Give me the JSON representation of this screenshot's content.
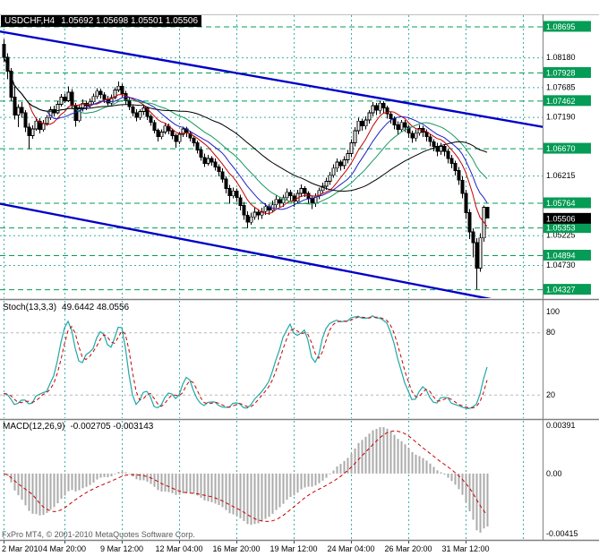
{
  "window": {
    "symbol": "USDCHF,H4",
    "ohlc_line": "1.05692 1.05698 1.05501 1.05506"
  },
  "indicator_headers": {
    "stoch_label": "Stoch(13,3,3)",
    "stoch_values": "49.6442 48.0556",
    "macd_label": "MACD(12,26,9)",
    "macd_values": "-0.002705 -0.003143"
  },
  "footer": {
    "copyright": "FxPro MT4, © 2001-2010 MetaQuotes Software Corp."
  },
  "colors": {
    "grid": "#3fafa9",
    "level": "#059c55",
    "trend": "#0000c8",
    "candle_outline": "#000000",
    "bull_fill": "#ffffff",
    "bear_fill": "#000000",
    "stoch_k": "#1fa8a8",
    "signal_red": "#c80000",
    "macd_hist": "#ababab",
    "current_badge_bg": "#000000",
    "badge_text": "#ffffff",
    "axis_text": "#000000",
    "separator": "#808080",
    "stoch_level_line": "#b8b8b8"
  },
  "chart_data": {
    "type": "candlestick",
    "symbol": "USDCHF",
    "timeframe": "H4",
    "price_pane": {
      "price_range": [
        1.0418,
        1.0888
      ],
      "y_ticks": [
        {
          "price": 1.0818,
          "label": "1.08180"
        },
        {
          "price": 1.07685,
          "label": "1.07685"
        },
        {
          "price": 1.0719,
          "label": "1.07190"
        },
        {
          "price": 1.06215,
          "label": "1.06215"
        },
        {
          "price": 1.05225,
          "label": "1.05225"
        },
        {
          "price": 1.0473,
          "label": "1.04730"
        }
      ],
      "levels": [
        {
          "price": 1.08695,
          "label": "1.08695"
        },
        {
          "price": 1.07928,
          "label": "1.07928"
        },
        {
          "price": 1.07462,
          "label": "1.07462"
        },
        {
          "price": 1.0667,
          "label": "1.06670"
        },
        {
          "price": 1.05764,
          "label": "1.05764"
        },
        {
          "price": 1.05353,
          "label": "1.05353"
        },
        {
          "price": 1.04894,
          "label": "1.04894"
        },
        {
          "price": 1.04327,
          "label": "1.04327"
        }
      ],
      "current_price": {
        "price": 1.05506,
        "label": "1.05506"
      },
      "moving_averages": [
        {
          "period": 8,
          "color": "#c80000"
        },
        {
          "period": 13,
          "color": "#2020c8"
        },
        {
          "period": 21,
          "color": "#17985f"
        },
        {
          "period": 40,
          "color": "#000000"
        }
      ],
      "trendlines": [
        {
          "bar1": -2,
          "price1": 1.0862,
          "bar2": 152,
          "price2": 1.0701
        },
        {
          "bar1": -2,
          "price1": 1.0576,
          "bar2": 152,
          "price2": 1.0398
        }
      ],
      "candles": [
        [
          1.084,
          1.0848,
          1.081,
          1.0818
        ],
        [
          1.0818,
          1.0825,
          1.0782,
          1.0795
        ],
        [
          1.0795,
          1.08,
          1.0745,
          1.0752
        ],
        [
          1.0752,
          1.077,
          1.0715,
          1.0722
        ],
        [
          1.0722,
          1.074,
          1.0702,
          1.0735
        ],
        [
          1.0735,
          1.0744,
          1.0718,
          1.0726
        ],
        [
          1.0726,
          1.073,
          1.0694,
          1.0702
        ],
        [
          1.0702,
          1.0709,
          1.0666,
          1.0688
        ],
        [
          1.0688,
          1.0705,
          1.0683,
          1.0699
        ],
        [
          1.0699,
          1.0718,
          1.0696,
          1.0712
        ],
        [
          1.0712,
          1.0717,
          1.0692,
          1.0698
        ],
        [
          1.0698,
          1.0714,
          1.0695,
          1.0708
        ],
        [
          1.0708,
          1.0722,
          1.0704,
          1.0718
        ],
        [
          1.0718,
          1.0736,
          1.0714,
          1.0731
        ],
        [
          1.0731,
          1.0738,
          1.072,
          1.0726
        ],
        [
          1.0726,
          1.0745,
          1.0724,
          1.074
        ],
        [
          1.074,
          1.0757,
          1.0736,
          1.0752
        ],
        [
          1.0752,
          1.0758,
          1.0742,
          1.0746
        ],
        [
          1.0746,
          1.077,
          1.0744,
          1.076
        ],
        [
          1.076,
          1.0765,
          1.0732,
          1.0738
        ],
        [
          1.0738,
          1.0742,
          1.0703,
          1.0713
        ],
        [
          1.0713,
          1.074,
          1.071,
          1.0734
        ],
        [
          1.0734,
          1.0748,
          1.0728,
          1.0742
        ],
        [
          1.0742,
          1.0746,
          1.073,
          1.0738
        ],
        [
          1.0738,
          1.075,
          1.0734,
          1.0744
        ],
        [
          1.0744,
          1.0758,
          1.074,
          1.0753
        ],
        [
          1.0753,
          1.0767,
          1.0749,
          1.0762
        ],
        [
          1.0762,
          1.0766,
          1.075,
          1.0756
        ],
        [
          1.0756,
          1.076,
          1.0742,
          1.0748
        ],
        [
          1.0748,
          1.0754,
          1.0736,
          1.0742
        ],
        [
          1.0742,
          1.0756,
          1.0738,
          1.0751
        ],
        [
          1.0751,
          1.0768,
          1.0748,
          1.0764
        ],
        [
          1.0764,
          1.0778,
          1.076,
          1.077
        ],
        [
          1.077,
          1.0774,
          1.0752,
          1.0758
        ],
        [
          1.0758,
          1.0762,
          1.074,
          1.0746
        ],
        [
          1.0746,
          1.0752,
          1.073,
          1.0736
        ],
        [
          1.0736,
          1.074,
          1.072,
          1.0726
        ],
        [
          1.0726,
          1.0732,
          1.0712,
          1.0718
        ],
        [
          1.0718,
          1.0732,
          1.0714,
          1.0728
        ],
        [
          1.0728,
          1.0738,
          1.0722,
          1.0734
        ],
        [
          1.0734,
          1.0736,
          1.0714,
          1.072
        ],
        [
          1.072,
          1.0724,
          1.0704,
          1.071
        ],
        [
          1.071,
          1.0714,
          1.0692,
          1.0697
        ],
        [
          1.0697,
          1.07,
          1.0678,
          1.0686
        ],
        [
          1.0686,
          1.0698,
          1.0682,
          1.0694
        ],
        [
          1.0694,
          1.0708,
          1.069,
          1.0704
        ],
        [
          1.0704,
          1.0708,
          1.069,
          1.0696
        ],
        [
          1.0696,
          1.07,
          1.0682,
          1.0688
        ],
        [
          1.0688,
          1.0692,
          1.0668,
          1.0678
        ],
        [
          1.0678,
          1.0694,
          1.0674,
          1.069
        ],
        [
          1.069,
          1.0703,
          1.0686,
          1.0699
        ],
        [
          1.0699,
          1.0703,
          1.0686,
          1.0692
        ],
        [
          1.0692,
          1.0696,
          1.0678,
          1.0684
        ],
        [
          1.0684,
          1.0688,
          1.067,
          1.0676
        ],
        [
          1.0676,
          1.068,
          1.0658,
          1.0664
        ],
        [
          1.0664,
          1.067,
          1.0646,
          1.0652
        ],
        [
          1.0652,
          1.0658,
          1.0636,
          1.0642
        ],
        [
          1.0642,
          1.0656,
          1.0638,
          1.065
        ],
        [
          1.065,
          1.0654,
          1.0638,
          1.0644
        ],
        [
          1.0644,
          1.065,
          1.063,
          1.0636
        ],
        [
          1.0636,
          1.064,
          1.062,
          1.0628
        ],
        [
          1.0628,
          1.0634,
          1.061,
          1.0616
        ],
        [
          1.0616,
          1.062,
          1.0592,
          1.06
        ],
        [
          1.06,
          1.0606,
          1.0575,
          1.0588
        ],
        [
          1.0588,
          1.0602,
          1.0584,
          1.0596
        ],
        [
          1.0596,
          1.06,
          1.0578,
          1.0585
        ],
        [
          1.0585,
          1.059,
          1.0564,
          1.0572
        ],
        [
          1.0572,
          1.0578,
          1.0548,
          1.0556
        ],
        [
          1.0556,
          1.0562,
          1.0534,
          1.0544
        ],
        [
          1.0544,
          1.056,
          1.054,
          1.0553
        ],
        [
          1.0553,
          1.0568,
          1.0548,
          1.0561
        ],
        [
          1.0561,
          1.0566,
          1.0548,
          1.0556
        ],
        [
          1.0556,
          1.0568,
          1.055,
          1.0562
        ],
        [
          1.0562,
          1.0576,
          1.0556,
          1.057
        ],
        [
          1.057,
          1.0574,
          1.0556,
          1.0564
        ],
        [
          1.0564,
          1.058,
          1.056,
          1.0573
        ],
        [
          1.0573,
          1.0588,
          1.0568,
          1.0582
        ],
        [
          1.0582,
          1.0586,
          1.0568,
          1.0576
        ],
        [
          1.0576,
          1.059,
          1.057,
          1.0585
        ],
        [
          1.0585,
          1.06,
          1.058,
          1.0594
        ],
        [
          1.0594,
          1.0598,
          1.058,
          1.0588
        ],
        [
          1.0588,
          1.0592,
          1.057,
          1.0579
        ],
        [
          1.0579,
          1.0598,
          1.0574,
          1.0592
        ],
        [
          1.0592,
          1.0607,
          1.0586,
          1.06
        ],
        [
          1.06,
          1.0604,
          1.0586,
          1.0592
        ],
        [
          1.0592,
          1.0596,
          1.0576,
          1.0584
        ],
        [
          1.0584,
          1.0588,
          1.0566,
          1.0576
        ],
        [
          1.0576,
          1.0592,
          1.057,
          1.0588
        ],
        [
          1.0588,
          1.0602,
          1.0582,
          1.0597
        ],
        [
          1.0597,
          1.061,
          1.0592,
          1.0604
        ],
        [
          1.0604,
          1.0618,
          1.0598,
          1.0612
        ],
        [
          1.0612,
          1.0628,
          1.0606,
          1.0622
        ],
        [
          1.0622,
          1.064,
          1.0618,
          1.0634
        ],
        [
          1.0634,
          1.065,
          1.0628,
          1.0644
        ],
        [
          1.0644,
          1.0648,
          1.063,
          1.0638
        ],
        [
          1.0638,
          1.0654,
          1.0632,
          1.0648
        ],
        [
          1.0648,
          1.0664,
          1.0642,
          1.0658
        ],
        [
          1.0658,
          1.0682,
          1.0652,
          1.0676
        ],
        [
          1.0676,
          1.0702,
          1.067,
          1.0696
        ],
        [
          1.0696,
          1.0718,
          1.069,
          1.0712
        ],
        [
          1.0712,
          1.0716,
          1.0696,
          1.0704
        ],
        [
          1.0704,
          1.072,
          1.0698,
          1.0714
        ],
        [
          1.0714,
          1.073,
          1.0708,
          1.0726
        ],
        [
          1.0726,
          1.0744,
          1.072,
          1.0738
        ],
        [
          1.0738,
          1.0742,
          1.0722,
          1.073
        ],
        [
          1.073,
          1.0746,
          1.0724,
          1.0742
        ],
        [
          1.0742,
          1.0745,
          1.0726,
          1.0734
        ],
        [
          1.0734,
          1.0738,
          1.0716,
          1.0724
        ],
        [
          1.0724,
          1.0728,
          1.0708,
          1.0716
        ],
        [
          1.0716,
          1.072,
          1.0698,
          1.0706
        ],
        [
          1.0706,
          1.0712,
          1.069,
          1.0698
        ],
        [
          1.0698,
          1.0714,
          1.0694,
          1.071
        ],
        [
          1.071,
          1.0714,
          1.0694,
          1.0702
        ],
        [
          1.0702,
          1.0706,
          1.0684,
          1.0692
        ],
        [
          1.0692,
          1.0696,
          1.0676,
          1.0684
        ],
        [
          1.0684,
          1.0698,
          1.0678,
          1.0692
        ],
        [
          1.0692,
          1.0706,
          1.0688,
          1.07
        ],
        [
          1.07,
          1.0704,
          1.0686,
          1.0694
        ],
        [
          1.0694,
          1.0698,
          1.0678,
          1.0686
        ],
        [
          1.0686,
          1.069,
          1.067,
          1.0678
        ],
        [
          1.0678,
          1.0682,
          1.0662,
          1.067
        ],
        [
          1.067,
          1.0676,
          1.0654,
          1.0662
        ],
        [
          1.0662,
          1.0676,
          1.0656,
          1.067
        ],
        [
          1.067,
          1.0674,
          1.0654,
          1.0662
        ],
        [
          1.0662,
          1.0666,
          1.0642,
          1.065
        ],
        [
          1.065,
          1.0656,
          1.0634,
          1.0642
        ],
        [
          1.0642,
          1.0646,
          1.0622,
          1.063
        ],
        [
          1.063,
          1.0636,
          1.0606,
          1.0614
        ],
        [
          1.0614,
          1.062,
          1.0584,
          1.0592
        ],
        [
          1.0592,
          1.0598,
          1.055,
          1.056
        ],
        [
          1.056,
          1.0566,
          1.0516,
          1.0528
        ],
        [
          1.0528,
          1.0534,
          1.0486,
          1.051
        ],
        [
          1.051,
          1.0518,
          1.0433,
          1.0468
        ],
        [
          1.0468,
          1.0526,
          1.0462,
          1.0518
        ],
        [
          1.0518,
          1.0572,
          1.0512,
          1.0569
        ],
        [
          1.05692,
          1.05698,
          1.05501,
          1.05506
        ]
      ]
    },
    "stoch_pane": {
      "params": [
        13,
        3,
        3
      ],
      "k_value": 49.6442,
      "d_value": 48.0556,
      "range": [
        0,
        100
      ],
      "scale_labels": [
        {
          "v": 100,
          "label": "100"
        },
        {
          "v": 80,
          "label": "80"
        },
        {
          "v": 20,
          "label": "20"
        }
      ],
      "level_lines": [
        80,
        20
      ]
    },
    "macd_pane": {
      "params": [
        12,
        26,
        9
      ],
      "macd_value": -0.002705,
      "signal_value": -0.003143,
      "scale_labels": {
        "top": "0.00391",
        "zero": "0.00",
        "bottom": "-0.00415"
      }
    },
    "time_axis": {
      "labels": [
        {
          "bar": 0,
          "label": "2 Mar 2010"
        },
        {
          "bar": 17,
          "label": "4 Mar 20:00"
        },
        {
          "bar": 33,
          "label": "9 Mar 12:00"
        },
        {
          "bar": 49,
          "label": "12 Mar 04:00"
        },
        {
          "bar": 65,
          "label": "16 Mar 20:00"
        },
        {
          "bar": 81,
          "label": "19 Mar 12:00"
        },
        {
          "bar": 97,
          "label": "24 Mar 04:00"
        },
        {
          "bar": 113,
          "label": "26 Mar 20:00"
        },
        {
          "bar": 129,
          "label": "31 Mar 12:00"
        }
      ],
      "extra_grid_bars": [
        145
      ]
    }
  }
}
